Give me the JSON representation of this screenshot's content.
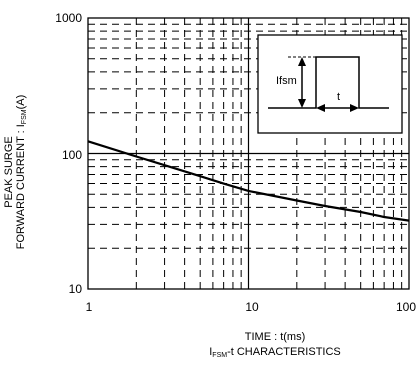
{
  "chart_data": {
    "type": "line",
    "xscale": "log",
    "yscale": "log",
    "xlim": [
      1,
      100
    ],
    "ylim": [
      10,
      1000
    ],
    "x_ticks": [
      "1",
      "10",
      "100"
    ],
    "y_ticks": [
      "10",
      "100",
      "1000"
    ],
    "grid": true,
    "xlabel": "TIME : t(ms)",
    "ylabel_line1": "PEAK SURGE",
    "ylabel_line2_prefix": "FORWARD CURRENT : I",
    "ylabel_line2_sub": "FSM",
    "ylabel_line2_suffix": "(A)",
    "caption_prefix": "I",
    "caption_sub": "FSM",
    "caption_suffix": "-t CHARACTERISTICS",
    "series": [
      {
        "x": [
          1,
          2,
          3,
          5,
          7,
          10,
          20,
          30,
          50,
          70,
          100
        ],
        "y": [
          123,
          95,
          82,
          68,
          60,
          53,
          45,
          41,
          37,
          34,
          32
        ]
      }
    ],
    "inset": {
      "labels": {
        "current": "Ifsm",
        "time": "t"
      }
    }
  }
}
